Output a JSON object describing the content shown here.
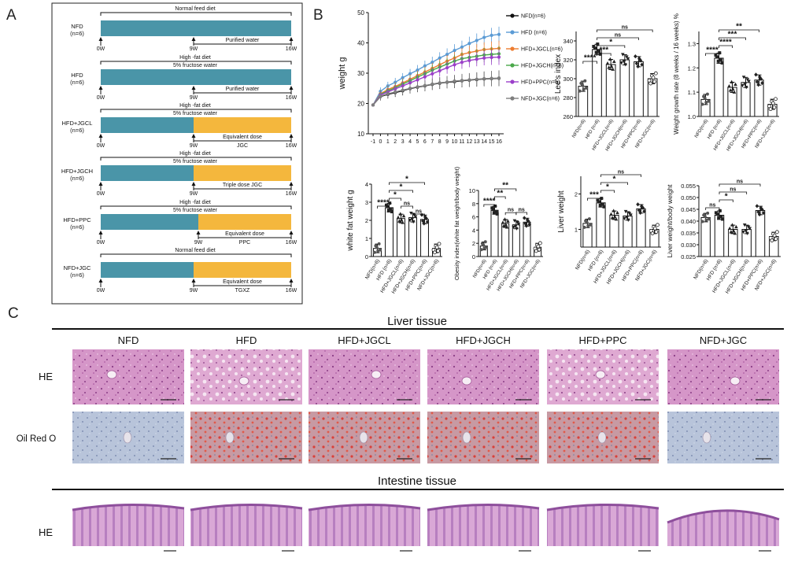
{
  "panel_labels": [
    "A",
    "B",
    "C"
  ],
  "colors": {
    "nfd": "#111111",
    "hfd": "#5b9bd5",
    "jgcl": "#ed7d31",
    "jgch": "#4aa84a",
    "ppc": "#9b3fc9",
    "jgc": "#7f7f7f",
    "teal": "#4a95a8",
    "orange": "#f4b73d",
    "he_pink": "#cf8fc2",
    "he_dark": "#b766a8",
    "oil_blue": "#aebdd6"
  },
  "panel_a": {
    "groups": [
      {
        "name": "NFD",
        "n": "(n=6)",
        "line1": "Normal feed diet",
        "line2": "",
        "post1": "Purified water",
        "post2": "",
        "orange": false
      },
      {
        "name": "HFD",
        "n": "(n=6)",
        "line1": "High  -fat diet",
        "line2": "5% fructose water",
        "post1": "Purified water",
        "post2": "",
        "orange": false
      },
      {
        "name": "HFD+JGCL",
        "n": "(n=6)",
        "line1": "High  -fat diet",
        "line2": "5% fructose water",
        "post1": "Equivalent dose",
        "post2": "JGC",
        "orange": true
      },
      {
        "name": "HFD+JGCH",
        "n": "(n=6)",
        "line1": "High  -fat diet",
        "line2": "5% fructose water",
        "post1": "Triple dose JGC",
        "post2": "",
        "orange": true
      },
      {
        "name": "HFD+PPC",
        "n": "(n=6)",
        "line1": "High  -fat diet",
        "line2": "5% fructose water",
        "post1": "Equivalent dose",
        "post2": "PPC",
        "orange": true
      },
      {
        "name": "NFD+JGC",
        "n": "(n=6)",
        "line1": "Normal feed diet",
        "line2": "",
        "post1": "Equivalent dose",
        "post2": "TGXZ",
        "orange": true
      }
    ],
    "week_labels": [
      "0W",
      "9W",
      "16W"
    ]
  },
  "chart_data": [
    {
      "id": "weight",
      "type": "line",
      "ylabel": "weight g",
      "ylim": [
        10,
        50
      ],
      "yticks": [
        "10",
        "20",
        "30",
        "40",
        "50"
      ],
      "categories": [
        "-1",
        "0",
        "1",
        "2",
        "3",
        "4",
        "5",
        "6",
        "7",
        "8",
        "9",
        "10",
        "11",
        "12",
        "13",
        "14",
        "15",
        "16"
      ],
      "series": [
        {
          "name": "NFD(n=6)",
          "color": "#111111",
          "values": [
            19.5,
            22.3,
            23.0,
            23.6,
            24.2,
            24.9,
            25.4,
            25.8,
            26.3,
            26.7,
            27.0,
            27.2,
            27.5,
            27.7,
            27.9,
            28.1,
            28.2,
            28.3
          ]
        },
        {
          "name": "HFD (n=6)",
          "color": "#5b9bd5",
          "values": [
            19.5,
            24.0,
            25.8,
            27.0,
            28.5,
            29.8,
            31.0,
            32.4,
            33.6,
            35.0,
            36.2,
            37.5,
            38.6,
            39.8,
            40.8,
            41.8,
            42.5,
            42.8
          ]
        },
        {
          "name": "HFD+JGCL(n=6)",
          "color": "#ed7d31",
          "values": [
            19.5,
            23.2,
            24.6,
            25.6,
            26.8,
            28.0,
            29.2,
            30.4,
            31.6,
            32.8,
            34.0,
            35.0,
            36.2,
            36.8,
            37.3,
            37.8,
            38.0,
            38.2
          ]
        },
        {
          "name": "HFD+JGCH(n=6)",
          "color": "#4aa84a",
          "values": [
            19.5,
            23.0,
            24.2,
            25.2,
            26.4,
            27.5,
            28.7,
            29.8,
            31.0,
            32.0,
            33.0,
            34.0,
            34.8,
            35.2,
            35.6,
            36.0,
            36.2,
            36.4
          ]
        },
        {
          "name": "HFD+PPC(n=6)",
          "color": "#9b3fc9",
          "values": [
            19.5,
            22.8,
            23.8,
            24.8,
            25.8,
            26.8,
            27.8,
            28.8,
            29.8,
            30.8,
            31.8,
            32.8,
            33.6,
            34.2,
            34.6,
            35.0,
            35.2,
            35.3
          ]
        },
        {
          "name": "NFD+JGC(n=6)",
          "color": "#7f7f7f",
          "values": [
            19.5,
            22.4,
            23.2,
            23.8,
            24.4,
            25.0,
            25.5,
            25.9,
            26.4,
            26.8,
            27.1,
            27.4,
            27.6,
            27.8,
            28.0,
            28.2,
            28.3,
            28.4
          ]
        }
      ]
    },
    {
      "id": "lees",
      "type": "bar",
      "ylabel": "Lee's index",
      "ylim": [
        260,
        350
      ],
      "yticks": [
        "260",
        "280",
        "300",
        "320",
        "340"
      ],
      "categories": [
        "NFD(n=6)",
        "HFD (n=6)",
        "HFD+JGCL(n=6)",
        "HFD+JGCH(n=6)",
        "HFD+PPC(n=6)",
        "NFD+JGC(n=6)"
      ],
      "values": [
        292,
        331,
        315,
        320,
        318,
        300
      ],
      "sig": [
        {
          "label": "ns",
          "from": 1,
          "to": 5
        },
        {
          "label": "ns",
          "from": 1,
          "to": 4
        },
        {
          "label": "*",
          "from": 1,
          "to": 3
        },
        {
          "label": "***",
          "from": 1,
          "to": 2
        },
        {
          "label": "****",
          "from": 0,
          "to": 1
        }
      ]
    },
    {
      "id": "growth",
      "type": "bar",
      "ylabel": "Weight growth rate (8 weeks / 16 weeks) %",
      "ylim": [
        1.0,
        1.35
      ],
      "yticks": [
        "1.0",
        "1.1",
        "1.2",
        "1.3"
      ],
      "categories": [
        "NFD(n=6)",
        "HFD (n=6)",
        "HFD+JGCL(n=6)",
        "HFD+JGCH(n=6)",
        "HFD+PPC(n=6)",
        "NFD+JGC(n=6)"
      ],
      "values": [
        1.07,
        1.24,
        1.12,
        1.14,
        1.15,
        1.05
      ],
      "sig": [
        {
          "label": "**",
          "from": 1,
          "to": 4
        },
        {
          "label": "***",
          "from": 1,
          "to": 3
        },
        {
          "label": "****",
          "from": 1,
          "to": 2
        },
        {
          "label": "****",
          "from": 0,
          "to": 1
        }
      ]
    },
    {
      "id": "whitefat",
      "type": "bar",
      "ylabel": "white fat weight g",
      "ylim": [
        0,
        4
      ],
      "yticks": [
        "0",
        "1",
        "2",
        "3",
        "4"
      ],
      "categories": [
        "NFD(n=6)",
        "HFD (n=6)",
        "HFD+JGCL(n=6)",
        "HFD+JGCH(n=6)",
        "HFD+PPC(n=6)",
        "NFD+JGC(n=6)"
      ],
      "values": [
        0.45,
        2.7,
        2.1,
        2.15,
        2.05,
        0.45
      ],
      "sig": [
        {
          "label": "*",
          "from": 1,
          "to": 4
        },
        {
          "label": "*",
          "from": 1,
          "to": 3
        },
        {
          "label": "*",
          "from": 1,
          "to": 2
        },
        {
          "label": "****",
          "from": 0,
          "to": 1
        },
        {
          "label": "ns",
          "from": 2,
          "to": 3
        },
        {
          "label": "ns",
          "from": 3,
          "to": 4
        }
      ]
    },
    {
      "id": "obesity",
      "type": "bar",
      "ylabel": "Obesity index(white fat weight/body weight)",
      "ylim": [
        0,
        10
      ],
      "yticks": [
        "0",
        "2",
        "4",
        "6",
        "8",
        "10"
      ],
      "categories": [
        "NFD(n=6)",
        "HFD (n=6)",
        "HFD+JGCL(n=6)",
        "HFD+JGCH(n=6)",
        "HFD+PPC(n=6)",
        "NFD+JGC(n=6)"
      ],
      "values": [
        1.6,
        7.0,
        5.0,
        4.8,
        5.2,
        1.4
      ],
      "sig": [
        {
          "label": "**",
          "from": 1,
          "to": 3
        },
        {
          "label": "**",
          "from": 1,
          "to": 2
        },
        {
          "label": "****",
          "from": 0,
          "to": 1
        },
        {
          "label": "ns",
          "from": 2,
          "to": 3
        },
        {
          "label": "ns",
          "from": 3,
          "to": 4
        }
      ]
    },
    {
      "id": "liver",
      "type": "bar",
      "ylabel": "Liver weight",
      "ylim": [
        0.5,
        2.5
      ],
      "yticks": [
        "1",
        "2"
      ],
      "categories": [
        "NFD(n=6)",
        "HFD (n=6)",
        "HFD+JGCL(n=6)",
        "HFD+JGCH(n=6)",
        "HFD+PPC(n=6)",
        "NFD+JGC(n=6)"
      ],
      "values": [
        1.17,
        1.75,
        1.4,
        1.38,
        1.58,
        1.0
      ],
      "sig": [
        {
          "label": "ns",
          "from": 1,
          "to": 4
        },
        {
          "label": "*",
          "from": 1,
          "to": 3
        },
        {
          "label": "*",
          "from": 1,
          "to": 2
        },
        {
          "label": "***",
          "from": 0,
          "to": 1
        }
      ]
    },
    {
      "id": "liverratio",
      "type": "bar",
      "ylabel": "Liver weight/body weight",
      "ylim": [
        0.025,
        0.055
      ],
      "yticks": [
        "0.025",
        "0.030",
        "0.035",
        "0.040",
        "0.045",
        "0.050",
        "0.055"
      ],
      "categories": [
        "NFD(n=6)",
        "HFD (n=6)",
        "HFD+JGCL(n=6)",
        "HFD+JGCH(n=6)",
        "HFD+PPC(n=6)",
        "NFD+JGC(n=6)"
      ],
      "values": [
        0.0415,
        0.0425,
        0.0365,
        0.0365,
        0.0445,
        0.0335
      ],
      "sig": [
        {
          "label": "ns",
          "from": 1,
          "to": 4
        },
        {
          "label": "ns",
          "from": 1,
          "to": 3
        },
        {
          "label": "*",
          "from": 1,
          "to": 2
        },
        {
          "label": "ns",
          "from": 0,
          "to": 1
        }
      ]
    }
  ],
  "panel_c": {
    "liver_title": "Liver tissue",
    "intestine_title": "Intestine tissue",
    "groups": [
      "NFD",
      "HFD",
      "HFD+JGCL",
      "HFD+JGCH",
      "HFD+PPC",
      "NFD+JGC"
    ],
    "rows": [
      "HE",
      "Oil Red O",
      "HE"
    ]
  }
}
